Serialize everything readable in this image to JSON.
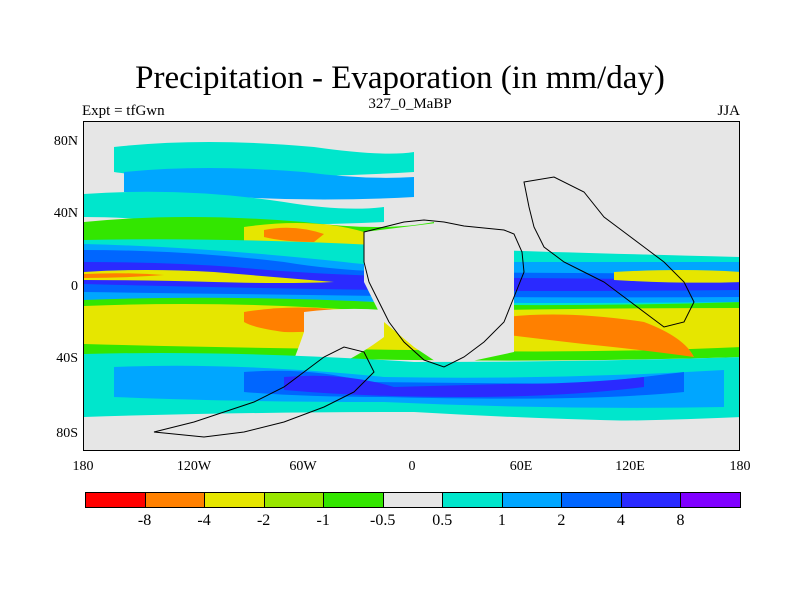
{
  "title": "Precipitation - Evaporation (in mm/day)",
  "subtitle_left": "Expt = tfGwn",
  "subtitle_center": "327_0_MaBP",
  "subtitle_right": "JJA",
  "y_axis_labels": [
    "80N",
    "40N",
    "0",
    "40S",
    "80S"
  ],
  "x_axis_labels": [
    "180",
    "120W",
    "60W",
    "0",
    "60E",
    "120E",
    "180"
  ],
  "colorbar": {
    "labels": [
      "-8",
      "-4",
      "-2",
      "-1",
      "-0.5",
      "0.5",
      "1",
      "2",
      "4",
      "8"
    ],
    "colors": [
      "#ff0000",
      "#ff8000",
      "#e6e600",
      "#99e600",
      "#33e600",
      "#e6e6e6",
      "#00e6cc",
      "#00a6ff",
      "#0066ff",
      "#2a2aff",
      "#8000ff"
    ]
  }
}
